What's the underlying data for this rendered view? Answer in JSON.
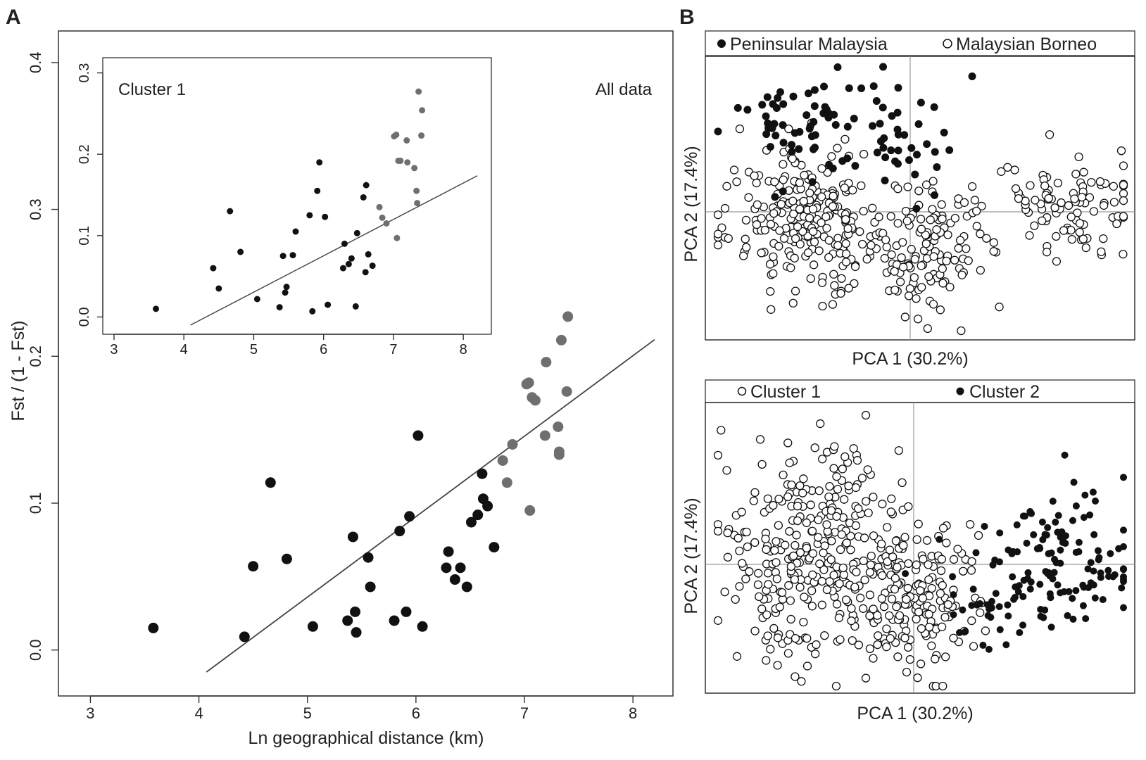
{
  "panel_labels": {
    "a": "A",
    "b": "B"
  },
  "colors": {
    "dark": "#111111",
    "grey": "#6f6f6f",
    "line": "#444444",
    "frame": "#333333"
  },
  "chart_data": [
    {
      "id": "A_main",
      "type": "scatter",
      "xlabel": "Ln geographical distance (km)",
      "ylabel": "Fst / (1 - Fst)",
      "xlim": [
        2.9,
        8.2
      ],
      "ylim": [
        -0.015,
        0.41
      ],
      "xticks": [
        "3",
        "4",
        "5",
        "6",
        "7",
        "8"
      ],
      "yticks": [
        "0.0",
        "0.1",
        "0.2",
        "0.3",
        "0.4"
      ],
      "annotation": "All data",
      "regression": {
        "intercept": -0.238,
        "slope": 0.0548
      },
      "series": [
        {
          "color": "dark",
          "points": [
            [
              3.58,
              0.015
            ],
            [
              4.42,
              0.009
            ],
            [
              4.5,
              0.057
            ],
            [
              4.66,
              0.114
            ],
            [
              4.81,
              0.062
            ],
            [
              5.05,
              0.016
            ],
            [
              5.37,
              0.02
            ],
            [
              5.42,
              0.077
            ],
            [
              5.44,
              0.026
            ],
            [
              5.45,
              0.012
            ],
            [
              5.56,
              0.063
            ],
            [
              5.58,
              0.043
            ],
            [
              5.8,
              0.02
            ],
            [
              5.85,
              0.081
            ],
            [
              5.91,
              0.026
            ],
            [
              5.94,
              0.091
            ],
            [
              6.02,
              0.146
            ],
            [
              6.06,
              0.016
            ],
            [
              6.28,
              0.056
            ],
            [
              6.3,
              0.067
            ],
            [
              6.36,
              0.048
            ],
            [
              6.41,
              0.056
            ],
            [
              6.47,
              0.043
            ],
            [
              6.51,
              0.087
            ],
            [
              6.57,
              0.092
            ],
            [
              6.61,
              0.12
            ],
            [
              6.62,
              0.103
            ],
            [
              6.66,
              0.098
            ],
            [
              6.72,
              0.07
            ]
          ]
        },
        {
          "color": "grey",
          "points": [
            [
              6.8,
              0.129
            ],
            [
              6.84,
              0.114
            ],
            [
              6.89,
              0.14
            ],
            [
              7.02,
              0.181
            ],
            [
              7.04,
              0.182
            ],
            [
              7.05,
              0.095
            ],
            [
              7.07,
              0.172
            ],
            [
              7.1,
              0.17
            ],
            [
              7.19,
              0.146
            ],
            [
              7.2,
              0.196
            ],
            [
              7.31,
              0.152
            ],
            [
              7.32,
              0.135
            ],
            [
              7.32,
              0.133
            ],
            [
              7.34,
              0.211
            ],
            [
              7.39,
              0.176
            ],
            [
              7.4,
              0.227
            ]
          ]
        }
      ]
    },
    {
      "id": "A_inset",
      "type": "scatter",
      "xlim": [
        2.95,
        8.2
      ],
      "ylim": [
        -0.01,
        0.31
      ],
      "xticks": [
        "3",
        "4",
        "5",
        "6",
        "7",
        "8"
      ],
      "yticks": [
        "0.0",
        "0.1",
        "0.2",
        "0.3"
      ],
      "annotation": "Cluster 1",
      "regression": {
        "intercept": -0.193,
        "slope": 0.0447
      },
      "series": [
        {
          "color": "dark",
          "points": [
            [
              3.6,
              0.01
            ],
            [
              4.42,
              0.06
            ],
            [
              4.5,
              0.035
            ],
            [
              4.66,
              0.13
            ],
            [
              4.81,
              0.08
            ],
            [
              5.05,
              0.022
            ],
            [
              5.37,
              0.012
            ],
            [
              5.42,
              0.075
            ],
            [
              5.45,
              0.03
            ],
            [
              5.47,
              0.037
            ],
            [
              5.56,
              0.076
            ],
            [
              5.6,
              0.105
            ],
            [
              5.8,
              0.125
            ],
            [
              5.84,
              0.007
            ],
            [
              5.91,
              0.155
            ],
            [
              5.94,
              0.19
            ],
            [
              6.02,
              0.123
            ],
            [
              6.06,
              0.015
            ],
            [
              6.28,
              0.06
            ],
            [
              6.3,
              0.09
            ],
            [
              6.36,
              0.065
            ],
            [
              6.4,
              0.072
            ],
            [
              6.46,
              0.013
            ],
            [
              6.48,
              0.103
            ],
            [
              6.57,
              0.147
            ],
            [
              6.61,
              0.162
            ],
            [
              6.6,
              0.055
            ],
            [
              6.64,
              0.077
            ],
            [
              6.7,
              0.063
            ]
          ]
        },
        {
          "color": "grey",
          "points": [
            [
              6.8,
              0.135
            ],
            [
              6.84,
              0.122
            ],
            [
              6.9,
              0.115
            ],
            [
              7.01,
              0.222
            ],
            [
              7.04,
              0.224
            ],
            [
              7.05,
              0.097
            ],
            [
              7.07,
              0.192
            ],
            [
              7.1,
              0.192
            ],
            [
              7.19,
              0.217
            ],
            [
              7.2,
              0.19
            ],
            [
              7.3,
              0.183
            ],
            [
              7.33,
              0.155
            ],
            [
              7.34,
              0.14
            ],
            [
              7.36,
              0.277
            ],
            [
              7.4,
              0.223
            ],
            [
              7.41,
              0.254
            ]
          ]
        }
      ]
    },
    {
      "id": "B_top",
      "type": "scatter",
      "xlabel": "PCA 1 (30.2%)",
      "ylabel": "PCA 2 (17.4%)",
      "legend": [
        {
          "label": "Peninsular Malaysia",
          "marker": "filled"
        },
        {
          "label": "Malaysian Borneo",
          "marker": "open"
        }
      ],
      "series": [
        {
          "name": "Peninsular Malaysia",
          "marker": "filled",
          "n_points": 95,
          "seed": 11
        },
        {
          "name": "Malaysian Borneo",
          "marker": "open",
          "n_points": 470,
          "seed": 23
        }
      ]
    },
    {
      "id": "B_bottom",
      "type": "scatter",
      "xlabel": "PCA 1 (30.2%)",
      "ylabel": "PCA 2 (17.4%)",
      "legend": [
        {
          "label": "Cluster 1",
          "marker": "open"
        },
        {
          "label": "Cluster 2",
          "marker": "filled"
        }
      ],
      "series": [
        {
          "name": "Cluster 1",
          "marker": "open",
          "n_points": 470,
          "seed": 37
        },
        {
          "name": "Cluster 2",
          "marker": "filled",
          "n_points": 150,
          "seed": 51
        }
      ]
    }
  ]
}
